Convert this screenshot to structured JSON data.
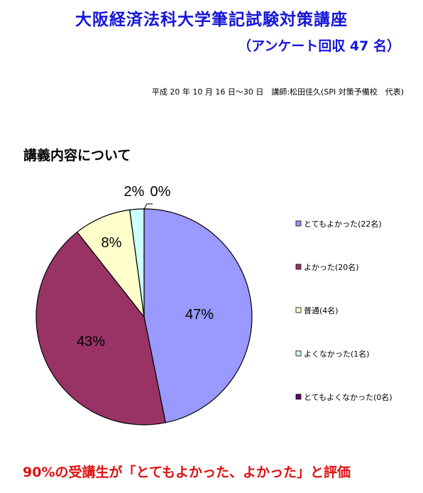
{
  "header": {
    "title": "大阪経済法科大学筆記試験対策講座",
    "subtitle": "（アンケート回収 47 名）",
    "meta": "平成 20 年 10 月 16 日～30 日　講師:松田佳久(SPI 対策予備校　代表)"
  },
  "section_title": "講義内容について",
  "footer": "90%の受講生が「とてもよかった、よかった」と評価",
  "chart_data": {
    "type": "pie",
    "title": "講義内容について",
    "categories": [
      "とてもよかった(22名)",
      "よかった(20名)",
      "普通(4名)",
      "よくなかった(1名)",
      "とてもよくなかった(0名)"
    ],
    "values": [
      22,
      20,
      4,
      1,
      0
    ],
    "percent_labels": [
      "47%",
      "43%",
      "8%",
      "2%",
      "0%"
    ],
    "colors": [
      "#9999ff",
      "#993366",
      "#ffffcc",
      "#ccffff",
      "#660066"
    ],
    "legend_position": "right"
  }
}
